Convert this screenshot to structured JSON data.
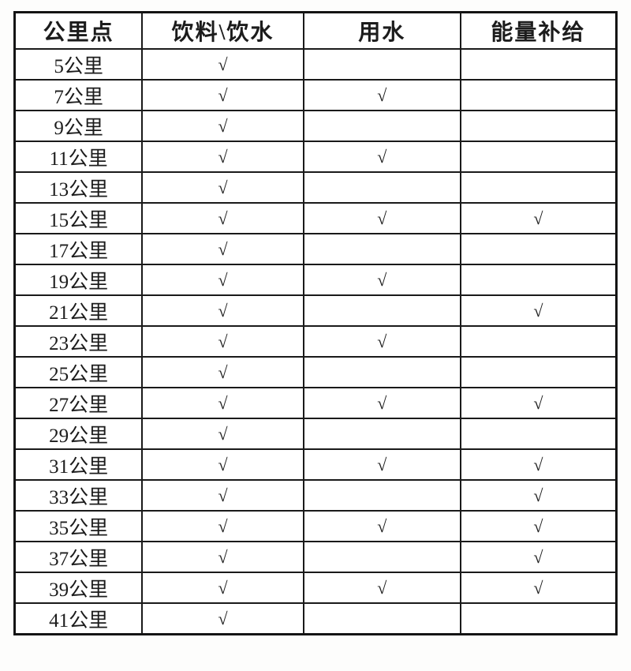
{
  "table": {
    "check_symbol": "√",
    "headers": [
      {
        "key": "km",
        "label": "公里点"
      },
      {
        "key": "drink",
        "label": "饮料\\饮水"
      },
      {
        "key": "water",
        "label": "用水"
      },
      {
        "key": "energy",
        "label": "能量补给"
      }
    ],
    "rows": [
      {
        "km": "5公里",
        "drink": true,
        "water": false,
        "energy": false
      },
      {
        "km": "7公里",
        "drink": true,
        "water": true,
        "energy": false
      },
      {
        "km": "9公里",
        "drink": true,
        "water": false,
        "energy": false
      },
      {
        "km": "11公里",
        "drink": true,
        "water": true,
        "energy": false
      },
      {
        "km": "13公里",
        "drink": true,
        "water": false,
        "energy": false
      },
      {
        "km": "15公里",
        "drink": true,
        "water": true,
        "energy": true
      },
      {
        "km": "17公里",
        "drink": true,
        "water": false,
        "energy": false
      },
      {
        "km": "19公里",
        "drink": true,
        "water": true,
        "energy": false
      },
      {
        "km": "21公里",
        "drink": true,
        "water": false,
        "energy": true
      },
      {
        "km": "23公里",
        "drink": true,
        "water": true,
        "energy": false
      },
      {
        "km": "25公里",
        "drink": true,
        "water": false,
        "energy": false
      },
      {
        "km": "27公里",
        "drink": true,
        "water": true,
        "energy": true
      },
      {
        "km": "29公里",
        "drink": true,
        "water": false,
        "energy": false
      },
      {
        "km": "31公里",
        "drink": true,
        "water": true,
        "energy": true
      },
      {
        "km": "33公里",
        "drink": true,
        "water": false,
        "energy": true
      },
      {
        "km": "35公里",
        "drink": true,
        "water": true,
        "energy": true
      },
      {
        "km": "37公里",
        "drink": true,
        "water": false,
        "energy": true
      },
      {
        "km": "39公里",
        "drink": true,
        "water": true,
        "energy": true
      },
      {
        "km": "41公里",
        "drink": true,
        "water": false,
        "energy": false
      }
    ]
  }
}
